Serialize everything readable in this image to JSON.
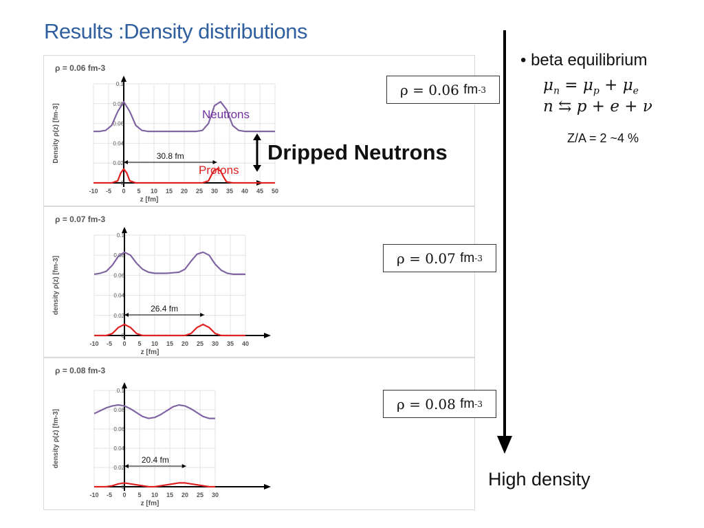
{
  "slide": {
    "title": "Results :Density distributions",
    "bullet": "beta equilibrium",
    "eq1": "μn = μp + μe",
    "eq2": "n ⇆ p + e + ν",
    "za_ratio": "Z/A = 2 ~4 %",
    "dripped_label": "Dripped Neutrons",
    "high_density_label": "High density",
    "neutrons_label": "Neutrons",
    "protons_label": "Protons",
    "colors": {
      "title": "#2f5f9e",
      "neutron": "#8064a2",
      "proton": "#e02020",
      "legend_neutron": "#7030a0",
      "legend_proton": "#e02020"
    }
  },
  "formulas": [
    {
      "lhs": "ρ = 0.06",
      "unit": "fm",
      "exp": "-3"
    },
    {
      "lhs": "ρ = 0.07",
      "unit": "fm",
      "exp": "-3"
    },
    {
      "lhs": "ρ = 0.08",
      "unit": "fm",
      "exp": "-3"
    }
  ],
  "chart_data": [
    {
      "type": "line",
      "title": "ρ = 0.06 fm-3",
      "xlabel": "z [fm]",
      "ylabel": "Density ρ(z) [fm-3]",
      "xlim": [
        -10,
        50
      ],
      "ylim": [
        0,
        0.1
      ],
      "xticks": [
        -10,
        -5,
        0,
        5,
        10,
        15,
        20,
        25,
        30,
        35,
        40,
        45,
        50
      ],
      "yticks": [
        0,
        0.02,
        0.04,
        0.06,
        0.08,
        0.1
      ],
      "annotation": "30.8 fm",
      "span": [
        0,
        30.8
      ],
      "series": [
        {
          "name": "Neutrons",
          "x": [
            -10,
            -8,
            -6,
            -4,
            -2,
            0,
            2,
            4,
            6,
            8,
            10,
            15,
            20,
            24,
            26,
            28,
            30,
            32,
            34,
            36,
            38,
            40,
            45,
            50
          ],
          "y": [
            0.052,
            0.052,
            0.053,
            0.058,
            0.072,
            0.082,
            0.072,
            0.058,
            0.053,
            0.052,
            0.052,
            0.052,
            0.052,
            0.052,
            0.053,
            0.06,
            0.078,
            0.082,
            0.074,
            0.058,
            0.053,
            0.052,
            0.052,
            0.052
          ]
        },
        {
          "name": "Protons",
          "x": [
            -10,
            -4,
            -2,
            -1,
            0,
            1,
            2,
            4,
            10,
            20,
            26,
            28,
            29,
            30,
            31,
            32,
            33,
            34,
            36,
            40,
            50
          ],
          "y": [
            0,
            0,
            0.002,
            0.01,
            0.014,
            0.01,
            0.002,
            0,
            0,
            0,
            0,
            0.002,
            0.008,
            0.013,
            0.014,
            0.012,
            0.006,
            0.001,
            0,
            0,
            0
          ]
        }
      ]
    },
    {
      "type": "line",
      "title": "ρ = 0.07 fm-3",
      "xlabel": "z [fm]",
      "ylabel": "density ρ(z) [fm-3]",
      "xlim": [
        -10,
        40
      ],
      "ylim": [
        0,
        0.1
      ],
      "xticks": [
        -10,
        -5,
        0,
        5,
        10,
        15,
        20,
        25,
        30,
        35,
        40
      ],
      "yticks": [
        0,
        0.02,
        0.04,
        0.06,
        0.08,
        0.1
      ],
      "annotation": "26.4 fm",
      "span": [
        0,
        26.4
      ],
      "series": [
        {
          "name": "Neutrons",
          "x": [
            -10,
            -8,
            -6,
            -4,
            -2,
            0,
            2,
            4,
            6,
            8,
            10,
            14,
            18,
            20,
            22,
            24,
            26,
            28,
            30,
            32,
            34,
            36,
            38,
            40
          ],
          "y": [
            0.061,
            0.062,
            0.064,
            0.07,
            0.079,
            0.083,
            0.08,
            0.072,
            0.066,
            0.063,
            0.062,
            0.062,
            0.063,
            0.066,
            0.074,
            0.081,
            0.083,
            0.08,
            0.071,
            0.065,
            0.062,
            0.061,
            0.061,
            0.061
          ]
        },
        {
          "name": "Protons",
          "x": [
            -10,
            -6,
            -4,
            -2,
            0,
            2,
            4,
            6,
            10,
            16,
            20,
            22,
            24,
            26,
            28,
            30,
            32,
            40
          ],
          "y": [
            0,
            0,
            0.002,
            0.008,
            0.011,
            0.008,
            0.002,
            0,
            0,
            0,
            0,
            0.002,
            0.008,
            0.011,
            0.008,
            0.002,
            0,
            0
          ]
        }
      ]
    },
    {
      "type": "line",
      "title": "ρ = 0.08 fm-3",
      "xlabel": "z [fm]",
      "ylabel": "density ρ(z) [fm-3]",
      "xlim": [
        -10,
        30
      ],
      "ylim": [
        0,
        0.1
      ],
      "xticks": [
        -10,
        -5,
        0,
        5,
        10,
        15,
        20,
        25,
        30
      ],
      "yticks": [
        0,
        0.02,
        0.04,
        0.06,
        0.08,
        0.1
      ],
      "annotation": "20.4 fm",
      "span": [
        0,
        20.4
      ],
      "series": [
        {
          "name": "Neutrons",
          "x": [
            -10,
            -8,
            -6,
            -4,
            -2,
            0,
            2,
            4,
            6,
            8,
            10,
            12,
            14,
            16,
            18,
            20,
            22,
            24,
            26,
            28,
            30
          ],
          "y": [
            0.076,
            0.079,
            0.082,
            0.084,
            0.085,
            0.084,
            0.081,
            0.077,
            0.073,
            0.071,
            0.072,
            0.075,
            0.079,
            0.083,
            0.085,
            0.084,
            0.081,
            0.077,
            0.073,
            0.071,
            0.071
          ]
        },
        {
          "name": "Protons",
          "x": [
            -10,
            -6,
            -4,
            -2,
            0,
            2,
            4,
            6,
            8,
            10,
            12,
            14,
            16,
            18,
            20,
            22,
            24,
            26,
            28,
            30
          ],
          "y": [
            0,
            0,
            0.001,
            0.003,
            0.004,
            0.003,
            0.002,
            0.001,
            0,
            0,
            0.001,
            0.002,
            0.003,
            0.004,
            0.004,
            0.003,
            0.002,
            0.001,
            0,
            0
          ]
        }
      ]
    }
  ]
}
